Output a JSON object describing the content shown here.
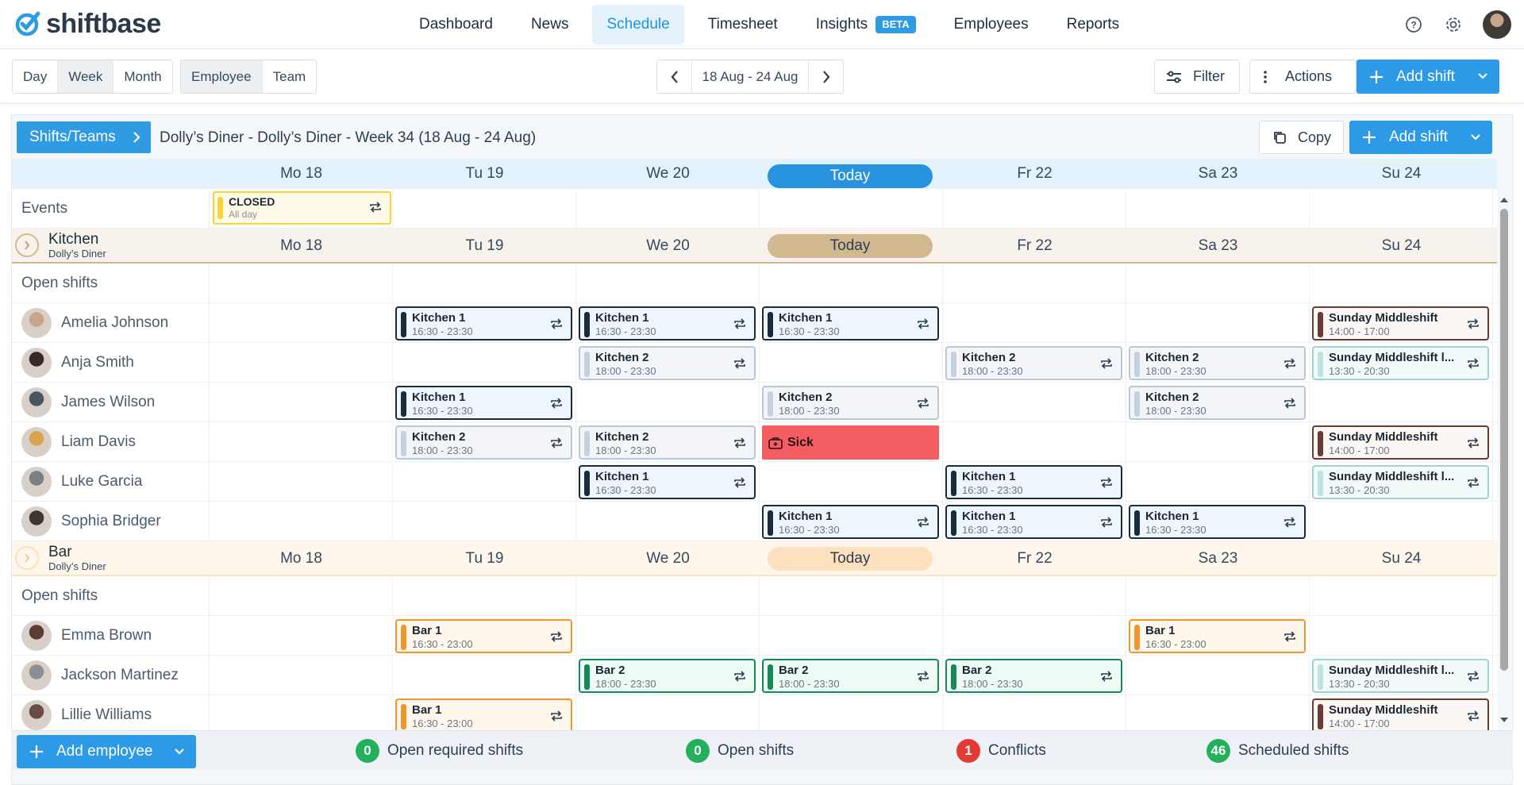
{
  "brand": {
    "name": "shiftbase"
  },
  "nav": {
    "items": [
      "Dashboard",
      "News",
      "Schedule",
      "Timesheet",
      "Insights",
      "Employees",
      "Reports"
    ],
    "active": "Schedule",
    "beta": "BETA"
  },
  "toolbar": {
    "views": [
      "Day",
      "Week",
      "Month"
    ],
    "view_selected": "Week",
    "groupings": [
      "Employee",
      "Team"
    ],
    "date_range": "18 Aug - 24 Aug",
    "filter": "Filter",
    "actions": "Actions",
    "add_shift": "Add shift"
  },
  "schedule": {
    "breadcrumb": "Shifts/Teams",
    "title": "Dolly’s Diner - Dolly’s Diner - Week 34 (18 Aug - 24 Aug)",
    "copy": "Copy",
    "add_shift": "Add shift"
  },
  "days": [
    "Mo 18",
    "Tu 19",
    "We 20",
    "Today",
    "Fr 22",
    "Sa 23",
    "Su 24"
  ],
  "events": {
    "label": "Events",
    "item": {
      "title": "CLOSED",
      "sub": "All day"
    }
  },
  "teams": [
    {
      "name": "Kitchen",
      "location": "Dolly’s Diner",
      "open_shifts": "Open shifts",
      "employees": [
        {
          "name": "Amelia Johnson",
          "shifts": [
            null,
            {
              "t": "Kitchen 1",
              "tm": "16:30 - 23:30",
              "s": "k1"
            },
            {
              "t": "Kitchen 1",
              "tm": "16:30 - 23:30",
              "s": "k1"
            },
            {
              "t": "Kitchen 1",
              "tm": "16:30 - 23:30",
              "s": "k1"
            },
            null,
            null,
            {
              "t": "Sunday Middleshift",
              "tm": "14:00 - 17:00",
              "s": "sm"
            }
          ]
        },
        {
          "name": "Anja Smith",
          "shifts": [
            null,
            null,
            {
              "t": "Kitchen 2",
              "tm": "18:00 - 23:30",
              "s": "k2"
            },
            null,
            {
              "t": "Kitchen 2",
              "tm": "18:00 - 23:30",
              "s": "k2"
            },
            {
              "t": "Kitchen 2",
              "tm": "18:00 - 23:30",
              "s": "k2"
            },
            {
              "t": "Sunday Middleshift l...",
              "tm": "13:30 - 20:30",
              "s": "sml"
            }
          ]
        },
        {
          "name": "James Wilson",
          "shifts": [
            null,
            {
              "t": "Kitchen 1",
              "tm": "16:30 - 23:30",
              "s": "k1"
            },
            null,
            {
              "t": "Kitchen 2",
              "tm": "18:00 - 23:30",
              "s": "k2"
            },
            null,
            {
              "t": "Kitchen 2",
              "tm": "18:00 - 23:30",
              "s": "k2"
            },
            null
          ]
        },
        {
          "name": "Liam Davis",
          "shifts": [
            null,
            {
              "t": "Kitchen 2",
              "tm": "18:00 - 23:30",
              "s": "k2"
            },
            {
              "t": "Kitchen 2",
              "tm": "18:00 - 23:30",
              "s": "k2"
            },
            {
              "t": "Sick",
              "s": "sick"
            },
            null,
            null,
            {
              "t": "Sunday Middleshift",
              "tm": "14:00 - 17:00",
              "s": "sm"
            }
          ]
        },
        {
          "name": "Luke Garcia",
          "shifts": [
            null,
            null,
            {
              "t": "Kitchen 1",
              "tm": "16:30 - 23:30",
              "s": "k1"
            },
            null,
            {
              "t": "Kitchen 1",
              "tm": "16:30 - 23:30",
              "s": "k1"
            },
            null,
            {
              "t": "Sunday Middleshift l...",
              "tm": "13:30 - 20:30",
              "s": "sml"
            }
          ]
        },
        {
          "name": "Sophia Bridger",
          "shifts": [
            null,
            null,
            null,
            {
              "t": "Kitchen 1",
              "tm": "16:30 - 23:30",
              "s": "k1"
            },
            {
              "t": "Kitchen 1",
              "tm": "16:30 - 23:30",
              "s": "k1"
            },
            {
              "t": "Kitchen 1",
              "tm": "16:30 - 23:30",
              "s": "k1"
            },
            null
          ]
        }
      ]
    },
    {
      "name": "Bar",
      "location": "Dolly’s Diner",
      "open_shifts": "Open shifts",
      "employees": [
        {
          "name": "Emma Brown",
          "shifts": [
            null,
            {
              "t": "Bar 1",
              "tm": "16:30 - 23:00",
              "s": "b1"
            },
            null,
            null,
            null,
            {
              "t": "Bar 1",
              "tm": "16:30 - 23:00",
              "s": "b1"
            },
            null
          ]
        },
        {
          "name": "Jackson Martinez",
          "shifts": [
            null,
            null,
            {
              "t": "Bar 2",
              "tm": "18:00 - 23:30",
              "s": "b2"
            },
            {
              "t": "Bar 2",
              "tm": "18:00 - 23:30",
              "s": "b2"
            },
            {
              "t": "Bar 2",
              "tm": "18:00 - 23:30",
              "s": "b2"
            },
            null,
            {
              "t": "Sunday Middleshift l...",
              "tm": "13:30 - 20:30",
              "s": "sml"
            }
          ]
        },
        {
          "name": "Lillie Williams",
          "shifts": [
            null,
            {
              "t": "Bar 1",
              "tm": "16:30 - 23:00",
              "s": "b1"
            },
            null,
            null,
            null,
            null,
            {
              "t": "Sunday Middleshift",
              "tm": "14:00 - 17:00",
              "s": "sm"
            }
          ]
        }
      ]
    }
  ],
  "footer": {
    "add_employee": "Add employee",
    "stats": [
      {
        "count": "0",
        "label": "Open required shifts",
        "color": "#22b05a"
      },
      {
        "count": "0",
        "label": "Open shifts",
        "color": "#22b05a"
      },
      {
        "count": "1",
        "label": "Conflicts",
        "color": "#e53935"
      },
      {
        "count": "46",
        "label": "Scheduled shifts",
        "color": "#22b05a"
      }
    ]
  },
  "colors": {
    "accent": "#2f9be3",
    "today_kitchen": "#d2b890",
    "today_bar": "#fde0bd",
    "header_today": "#2793df"
  }
}
